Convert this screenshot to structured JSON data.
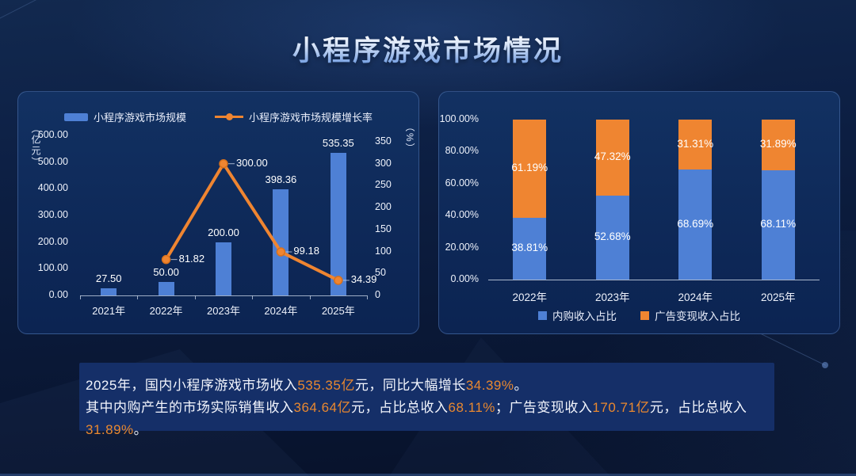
{
  "title": "小程序游戏市场情况",
  "colors": {
    "bar_blue": "#4e80d5",
    "accent_orange": "#ef8531",
    "highlight_text": "#e9882f"
  },
  "chart_data": [
    {
      "type": "bar",
      "subtype": "combo-bar-line",
      "categories": [
        "2021年",
        "2022年",
        "2023年",
        "2024年",
        "2025年"
      ],
      "series": [
        {
          "name": "小程序游戏市场规模",
          "type": "bar",
          "axis": "left",
          "color": "#4e80d5",
          "values": [
            27.5,
            50.0,
            200.0,
            398.36,
            535.35
          ],
          "labels": [
            "27.50",
            "50.00",
            "200.00",
            "398.36",
            "535.35"
          ]
        },
        {
          "name": "小程序游戏市场规模增长率",
          "type": "line",
          "axis": "right",
          "color": "#ef8531",
          "values": [
            null,
            81.82,
            300.0,
            99.18,
            34.39
          ],
          "labels": [
            null,
            "81.82",
            "300.00",
            "99.18",
            "34.39"
          ]
        }
      ],
      "y_left": {
        "unit": "（亿元）",
        "min": 0,
        "max": 600,
        "ticks": [
          "600.00",
          "500.00",
          "400.00",
          "300.00",
          "200.00",
          "100.00",
          "0.00"
        ]
      },
      "y_right": {
        "unit": "（%）",
        "min": 0,
        "max": 350,
        "ticks": [
          "350",
          "300",
          "250",
          "200",
          "150",
          "100",
          "50",
          "0"
        ]
      },
      "legend_position": "top",
      "grid": false
    },
    {
      "type": "bar",
      "subtype": "stacked-percent",
      "categories": [
        "2022年",
        "2023年",
        "2024年",
        "2025年"
      ],
      "series": [
        {
          "name": "内购收入占比",
          "color": "#4e80d5",
          "values": [
            38.81,
            52.68,
            68.69,
            68.11
          ],
          "labels": [
            "38.81%",
            "52.68%",
            "68.69%",
            "68.11%"
          ]
        },
        {
          "name": "广告变现收入占比",
          "color": "#ef8531",
          "values": [
            61.19,
            47.32,
            31.31,
            31.89
          ],
          "labels": [
            "61.19%",
            "47.32%",
            "31.31%",
            "31.89%"
          ]
        }
      ],
      "y": {
        "min": 0,
        "max": 100,
        "ticks": [
          "100.00%",
          "80.00%",
          "60.00%",
          "40.00%",
          "20.00%",
          "0.00%"
        ]
      },
      "legend_position": "bottom",
      "grid": false
    }
  ],
  "summary": {
    "lines": [
      {
        "segments": [
          {
            "text": "2025年，国内小程序游戏市场收入",
            "highlight": false
          },
          {
            "text": "535.35亿",
            "highlight": true
          },
          {
            "text": "元，同比大幅增长",
            "highlight": false
          },
          {
            "text": "34.39%",
            "highlight": true
          },
          {
            "text": "。",
            "highlight": false
          }
        ]
      },
      {
        "segments": [
          {
            "text": "其中内购产生的市场实际销售收入",
            "highlight": false
          },
          {
            "text": "364.64亿",
            "highlight": true
          },
          {
            "text": "元，占比总收入",
            "highlight": false
          },
          {
            "text": "68.11%",
            "highlight": true
          },
          {
            "text": "；广告变现收入",
            "highlight": false
          },
          {
            "text": "170.71亿",
            "highlight": true
          },
          {
            "text": "元，占比总收入",
            "highlight": false
          },
          {
            "text": "31.89%",
            "highlight": true
          },
          {
            "text": "。",
            "highlight": false
          }
        ]
      }
    ]
  }
}
